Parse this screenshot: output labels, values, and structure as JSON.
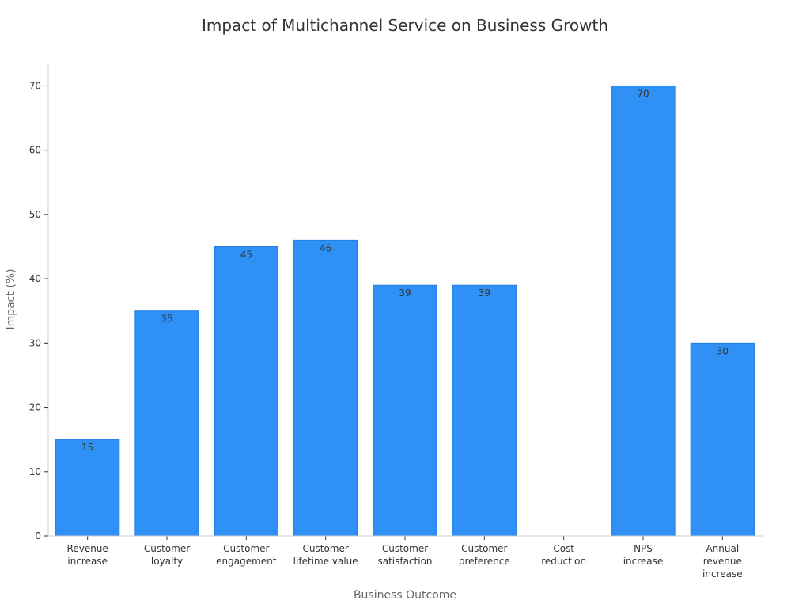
{
  "chart_data": {
    "type": "bar",
    "title": "Impact of Multichannel Service on Business Growth",
    "xlabel": "Business Outcome",
    "ylabel": "Impact (%)",
    "categories": [
      [
        "Revenue",
        "increase"
      ],
      [
        "Customer",
        "loyalty"
      ],
      [
        "Customer",
        "engagement"
      ],
      [
        "Customer",
        "lifetime value"
      ],
      [
        "Customer",
        "satisfaction"
      ],
      [
        "Customer",
        "preference"
      ],
      [
        "Cost",
        "reduction"
      ],
      [
        "NPS",
        "increase"
      ],
      [
        "Annual",
        "revenue",
        "increase"
      ]
    ],
    "values": [
      15,
      35,
      45,
      46,
      39,
      39,
      null,
      70,
      30
    ],
    "data_labels": [
      "15",
      "35",
      "45",
      "46",
      "39",
      "39",
      "",
      "70",
      "30"
    ],
    "ylim": [
      0,
      73.5
    ],
    "yticks": [
      0,
      10,
      20,
      30,
      40,
      50,
      60,
      70
    ],
    "grid": false,
    "legend": "none",
    "colors": {
      "bar": "#2f91f5",
      "bar_edge": "#1f7fe0",
      "axis": "#cccccc",
      "text": "#333333",
      "axis_title": "#666666"
    }
  }
}
